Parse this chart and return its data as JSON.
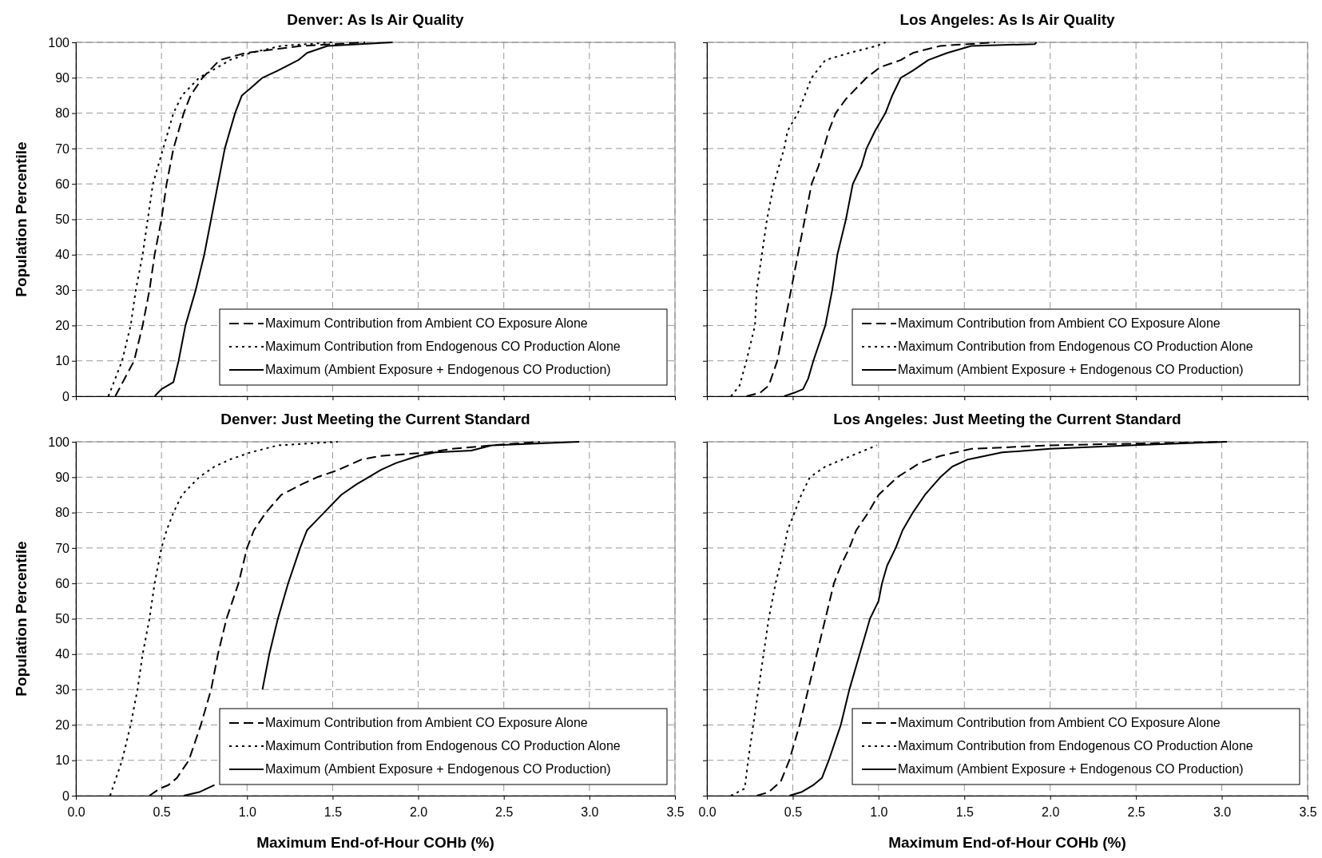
{
  "chart_data": [
    {
      "type": "line",
      "title": "Denver: As Is Air Quality",
      "ylabel": "Population Percentile",
      "xlim": [
        0,
        3.5
      ],
      "xticks": [
        {
          "value": 0,
          "label": null
        },
        {
          "value": 0.5,
          "label": null
        },
        {
          "value": 1,
          "label": null
        },
        {
          "value": 1.5,
          "label": null
        },
        {
          "value": 2,
          "label": null
        },
        {
          "value": 2.5,
          "label": null
        },
        {
          "value": 3,
          "label": null
        },
        {
          "value": 3.5,
          "label": null
        }
      ],
      "ylim": [
        0,
        100
      ],
      "yticks": [
        0,
        10,
        20,
        30,
        40,
        50,
        60,
        70,
        80,
        90,
        100
      ],
      "grid": true,
      "legend": "bottom right",
      "tick_labels": "y",
      "marker": "none",
      "series": [
        {
          "name": "Maximum Contribution from Ambient CO Exposure Alone",
          "color": "#000000",
          "line_style": "dashed",
          "x": [
            0.23,
            0.34,
            0.39,
            0.43,
            0.46,
            0.5,
            0.53,
            0.57,
            0.63,
            0.67,
            0.74,
            0.84,
            0.99,
            1.32,
            1.69
          ],
          "values": [
            0,
            10,
            20,
            30,
            40,
            50,
            60,
            70,
            80,
            85,
            90,
            95,
            97,
            99,
            100
          ]
        },
        {
          "name": "Maximum Contribution from Endogenous CO Production Alone",
          "color": "#000000",
          "line_style": "dotted",
          "x": [
            0.19,
            0.27,
            0.32,
            0.35,
            0.39,
            0.42,
            0.45,
            0.48,
            0.51,
            0.57,
            0.62,
            0.72,
            0.83,
            0.9,
            1.02,
            1.2,
            1.5
          ],
          "values": [
            0,
            10,
            20,
            30,
            40,
            50,
            60,
            65,
            70,
            80,
            85,
            90,
            93,
            95,
            97,
            99,
            100
          ]
        },
        {
          "name": "Maximum (Ambient Exposure + Endogenous CO Production)",
          "color": "#000000",
          "line_style": "solid",
          "x": [
            0.46,
            0.5,
            0.57,
            0.6,
            0.64,
            0.7,
            0.75,
            0.79,
            0.83,
            0.87,
            0.93,
            0.97,
            1.02,
            1.09,
            1.18,
            1.3,
            1.35,
            1.47,
            1.85
          ],
          "values": [
            0,
            2,
            4,
            10,
            20,
            30,
            40,
            50,
            60,
            70,
            80,
            85,
            87,
            90,
            92,
            95,
            97,
            99,
            100
          ]
        }
      ]
    },
    {
      "type": "line",
      "title": "Los Angeles: As Is Air Quality",
      "xlim": [
        0,
        3.5
      ],
      "xticks": [
        {
          "value": 0,
          "label": null
        },
        {
          "value": 0.5,
          "label": null
        },
        {
          "value": 1,
          "label": null
        },
        {
          "value": 1.5,
          "label": null
        },
        {
          "value": 2,
          "label": null
        },
        {
          "value": 2.5,
          "label": null
        },
        {
          "value": 3,
          "label": null
        },
        {
          "value": 3.5,
          "label": null
        }
      ],
      "ylim": [
        0,
        100
      ],
      "yticks": [
        0,
        10,
        20,
        30,
        40,
        50,
        60,
        70,
        80,
        90,
        100
      ],
      "grid": true,
      "legend": "bottom right",
      "tick_labels": false,
      "marker": "none",
      "series": [
        {
          "name": "Maximum Contribution from Ambient CO Exposure Alone",
          "color": "#000000",
          "line_style": "dashed",
          "x": [
            0.23,
            0.31,
            0.36,
            0.41,
            0.45,
            0.49,
            0.53,
            0.57,
            0.61,
            0.65,
            0.68,
            0.71,
            0.75,
            0.81,
            0.89,
            0.93,
            1.01,
            1.13,
            1.2,
            1.36,
            1.68
          ],
          "values": [
            0,
            1,
            3,
            10,
            20,
            30,
            40,
            50,
            60,
            65,
            70,
            75,
            80,
            84,
            88,
            90,
            93,
            95,
            97,
            99,
            100
          ]
        },
        {
          "name": "Maximum Contribution from Endogenous CO Production Alone",
          "color": "#000000",
          "line_style": "dotted",
          "x": [
            0.14,
            0.19,
            0.23,
            0.28,
            0.29,
            0.32,
            0.35,
            0.39,
            0.42,
            0.45,
            0.47,
            0.53,
            0.61,
            0.69,
            0.83,
            0.99,
            1.04
          ],
          "values": [
            0,
            3,
            10,
            20,
            30,
            40,
            50,
            60,
            65,
            70,
            75,
            80,
            90,
            95,
            97,
            99,
            100
          ]
        },
        {
          "name": "Maximum (Ambient Exposure + Endogenous CO Production)",
          "color": "#000000",
          "line_style": "solid",
          "x": [
            0.45,
            0.51,
            0.56,
            0.59,
            0.62,
            0.69,
            0.73,
            0.76,
            0.81,
            0.85,
            0.9,
            0.93,
            0.98,
            1.04,
            1.08,
            1.13,
            1.2,
            1.29,
            1.4,
            1.54,
            1.91,
            1.92
          ],
          "values": [
            0,
            1,
            2,
            5,
            10,
            20,
            30,
            40,
            50,
            60,
            65,
            70,
            75,
            80,
            85,
            90,
            92,
            95,
            97,
            99,
            99.5,
            100
          ]
        }
      ]
    },
    {
      "type": "line",
      "title": "Denver: Just Meeting the Current Standard",
      "xlabel": "Maximum End-of-Hour COHb (%)",
      "ylabel": "Population Percentile",
      "xlim": [
        0,
        3.5
      ],
      "xticks": [
        {
          "value": 0,
          "label": "0.0"
        },
        {
          "value": 0.5,
          "label": "0.5"
        },
        {
          "value": 1,
          "label": "1.0"
        },
        {
          "value": 1.5,
          "label": "1.5"
        },
        {
          "value": 2,
          "label": "2.0"
        },
        {
          "value": 2.5,
          "label": "2.5"
        },
        {
          "value": 3,
          "label": "3.0"
        },
        {
          "value": 3.5,
          "label": "3.5"
        }
      ],
      "ylim": [
        0,
        100
      ],
      "yticks": [
        0,
        10,
        20,
        30,
        40,
        50,
        60,
        70,
        80,
        90,
        100
      ],
      "grid": true,
      "legend": "bottom right",
      "marker": "none",
      "series": [
        {
          "name": "Maximum Contribution from Ambient CO Exposure Alone",
          "color": "#000000",
          "line_style": "dashed",
          "x": [
            0.43,
            0.49,
            0.54,
            0.59,
            0.66,
            0.73,
            0.79,
            0.83,
            0.88,
            0.95,
            1.0,
            1.04,
            1.11,
            1.2,
            1.32,
            1.41,
            1.53,
            1.67,
            1.78,
            2.06,
            2.2,
            2.43,
            2.71
          ],
          "values": [
            0,
            2,
            3,
            5,
            10,
            20,
            30,
            40,
            50,
            60,
            70,
            75,
            80,
            85,
            88,
            90,
            92,
            95,
            96,
            97,
            98,
            99,
            100
          ]
        },
        {
          "name": "Maximum Contribution from Endogenous CO Production Alone",
          "color": "#000000",
          "line_style": "dotted",
          "x": [
            0.2,
            0.27,
            0.32,
            0.36,
            0.39,
            0.43,
            0.46,
            0.5,
            0.53,
            0.57,
            0.62,
            0.72,
            0.81,
            0.9,
            1.02,
            1.18,
            1.53
          ],
          "values": [
            0,
            10,
            20,
            30,
            40,
            50,
            60,
            70,
            75,
            80,
            85,
            90,
            93,
            95,
            97,
            99,
            100
          ]
        },
        {
          "name": "Maximum (Ambient Exposure + Endogenous CO Production)",
          "color": "#000000",
          "line_style": "solid",
          "x": [
            0.63,
            0.72,
            0.81,
            null,
            null,
            null,
            1.09,
            1.13,
            1.18,
            1.24,
            1.31,
            1.35,
            1.45,
            1.55,
            1.64,
            1.71,
            1.78,
            1.87,
            2.0,
            2.1,
            2.31,
            2.43,
            2.94
          ],
          "values": [
            0,
            1,
            3,
            null,
            null,
            null,
            30,
            40,
            50,
            60,
            70,
            75,
            80,
            85,
            88,
            90,
            92,
            94,
            96,
            97,
            97.5,
            99,
            100
          ]
        }
      ]
    },
    {
      "type": "line",
      "title": "Los Angeles: Just Meeting the Current Standard",
      "xlabel": "Maximum End-of-Hour COHb (%)",
      "xlim": [
        0,
        3.5
      ],
      "xticks": [
        {
          "value": 0,
          "label": "0.0"
        },
        {
          "value": 0.5,
          "label": "0.5"
        },
        {
          "value": 1,
          "label": "1.0"
        },
        {
          "value": 1.5,
          "label": "1.5"
        },
        {
          "value": 2,
          "label": "2.0"
        },
        {
          "value": 2.5,
          "label": "2.5"
        },
        {
          "value": 3,
          "label": "3.0"
        },
        {
          "value": 3.5,
          "label": "3.5"
        }
      ],
      "ylim": [
        0,
        100
      ],
      "yticks": [
        0,
        10,
        20,
        30,
        40,
        50,
        60,
        70,
        80,
        90,
        100
      ],
      "grid": true,
      "legend": "bottom right",
      "tick_labels": "x",
      "marker": "none",
      "series": [
        {
          "name": "Maximum Contribution from Ambient CO Exposure Alone",
          "color": "#000000",
          "line_style": "dashed",
          "x": [
            0.29,
            0.36,
            0.43,
            0.48,
            0.54,
            0.59,
            0.64,
            0.69,
            0.74,
            0.78,
            0.83,
            0.87,
            0.94,
            1.0,
            1.11,
            1.24,
            1.36,
            1.54,
            2.0,
            3.02
          ],
          "values": [
            0,
            1,
            4,
            10,
            20,
            30,
            40,
            50,
            60,
            65,
            70,
            75,
            80,
            85,
            90,
            94,
            96,
            98,
            99,
            100
          ]
        },
        {
          "name": "Maximum Contribution from Endogenous CO Production Alone",
          "color": "#000000",
          "line_style": "dotted",
          "x": [
            0.14,
            0.22,
            0.24,
            0.27,
            0.3,
            0.33,
            0.36,
            0.4,
            0.45,
            0.47,
            0.51,
            0.55,
            0.6,
            0.69,
            0.79,
            0.99
          ],
          "values": [
            0,
            2,
            10,
            20,
            30,
            40,
            50,
            60,
            70,
            75,
            80,
            85,
            90,
            93,
            95,
            99
          ]
        },
        {
          "name": "Maximum (Ambient Exposure + Endogenous CO Production)",
          "color": "#000000",
          "line_style": "solid",
          "x": [
            0.48,
            0.55,
            0.62,
            0.67,
            0.71,
            0.78,
            0.83,
            0.89,
            0.95,
            1.0,
            1.02,
            1.05,
            1.1,
            1.14,
            1.2,
            1.27,
            1.36,
            1.43,
            1.52,
            1.72,
            2.0,
            2.46,
            3.03
          ],
          "values": [
            0,
            1,
            3,
            5,
            10,
            20,
            30,
            40,
            50,
            55,
            60,
            65,
            70,
            75,
            80,
            85,
            90,
            93,
            95,
            97,
            98,
            99,
            100
          ]
        }
      ]
    }
  ]
}
